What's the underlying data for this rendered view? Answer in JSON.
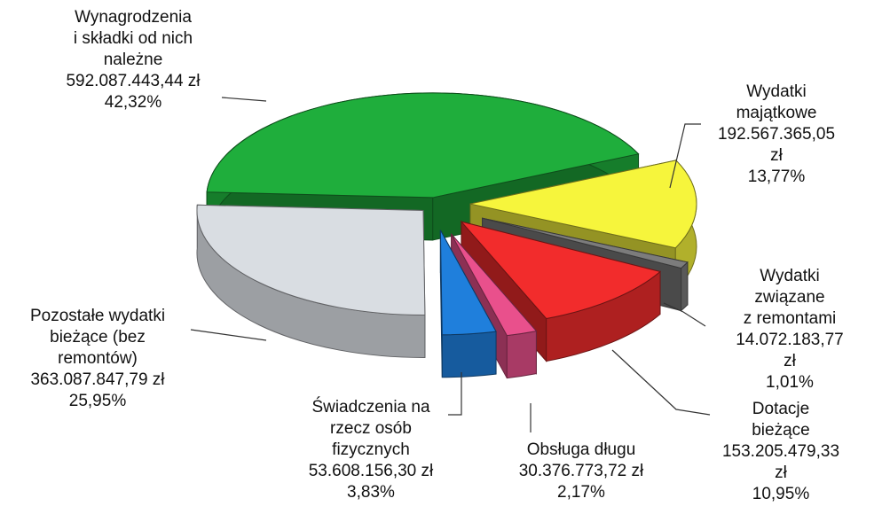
{
  "chart_data": {
    "type": "pie3d",
    "categories": [
      "Wynagrodzenia\ni składki od nich\nnależne",
      "Wydatki majątkowe",
      "Wydatki związane\nz remontami",
      "Dotacje bieżące",
      "Obsługa długu",
      "Świadczenia na\nrzecz osób\nfizycznych",
      "Pozostałe wydatki\nbieżące (bez\nremontów)"
    ],
    "values": [
      592087443.44,
      192567365.05,
      14072183.77,
      153205479.33,
      30376773.72,
      53608156.3,
      363087847.79
    ],
    "value_labels": [
      "592.087.443,44 zł",
      "192.567.365,05 zł",
      "14.072.183,77 zł",
      "153.205.479,33 zł",
      "30.376.773,72 zł",
      "53.608.156,30 zł",
      "363.087.847,79 zł"
    ],
    "percents": [
      42.32,
      13.77,
      1.01,
      10.95,
      2.17,
      3.83,
      25.95
    ],
    "percent_labels": [
      "42,32%",
      "13,77%",
      "1,01%",
      "10,95%",
      "2,17%",
      "3,83%",
      "25,95%"
    ],
    "colors": [
      "#1fae3c",
      "#f6f53c",
      "#7c7c7c",
      "#f22c2c",
      "#e9508c",
      "#1f7fdc",
      "#d9dde2"
    ]
  }
}
